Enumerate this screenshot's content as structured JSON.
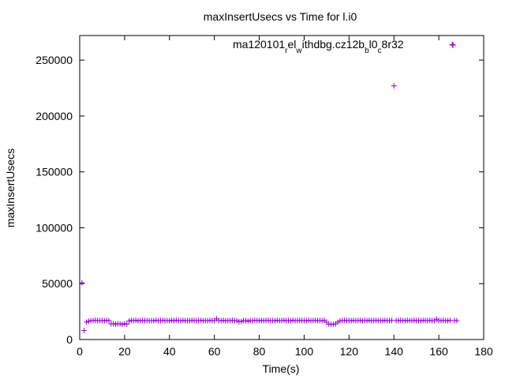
{
  "chart_data": {
    "type": "scatter",
    "title": "maxInsertUsecs vs Time for l.i0",
    "xlabel": "Time(s)",
    "ylabel": "maxInsertUsecs",
    "xlim": [
      0,
      180
    ],
    "ylim": [
      0,
      272000
    ],
    "x_ticks": [
      0,
      20,
      40,
      60,
      80,
      100,
      120,
      140,
      160,
      180
    ],
    "y_ticks": [
      0,
      50000,
      100000,
      150000,
      200000,
      250000
    ],
    "grid": false,
    "legend_position": "top-right",
    "series": [
      {
        "name": "ma120101_rel_withdbg.cz12b_bl0_c8r32",
        "color": "#9400d3",
        "marker": "plus",
        "points": [
          [
            1,
            50800
          ],
          [
            2,
            8000
          ],
          [
            3,
            15500
          ],
          [
            4,
            16300
          ],
          [
            5,
            16900
          ],
          [
            6,
            17000
          ],
          [
            7,
            17200
          ],
          [
            8,
            17000
          ],
          [
            9,
            16900
          ],
          [
            10,
            17000
          ],
          [
            11,
            16800
          ],
          [
            12,
            17100
          ],
          [
            13,
            16900
          ],
          [
            14,
            14000
          ],
          [
            15,
            14200
          ],
          [
            16,
            13800
          ],
          [
            17,
            14100
          ],
          [
            18,
            14000
          ],
          [
            19,
            13500
          ],
          [
            20,
            14200
          ],
          [
            21,
            13800
          ],
          [
            22,
            16500
          ],
          [
            23,
            17100
          ],
          [
            24,
            17000
          ],
          [
            25,
            17200
          ],
          [
            26,
            16800
          ],
          [
            27,
            17000
          ],
          [
            28,
            17100
          ],
          [
            29,
            16900
          ],
          [
            30,
            17000
          ],
          [
            31,
            16900
          ],
          [
            32,
            17000
          ],
          [
            33,
            16800
          ],
          [
            34,
            17100
          ],
          [
            35,
            16900
          ],
          [
            36,
            17000
          ],
          [
            37,
            17100
          ],
          [
            38,
            16900
          ],
          [
            39,
            17000
          ],
          [
            40,
            16800
          ],
          [
            41,
            17100
          ],
          [
            42,
            16900
          ],
          [
            43,
            17200
          ],
          [
            44,
            17000
          ],
          [
            45,
            16900
          ],
          [
            46,
            17100
          ],
          [
            47,
            16800
          ],
          [
            48,
            17000
          ],
          [
            49,
            16900
          ],
          [
            50,
            17100
          ],
          [
            51,
            17000
          ],
          [
            52,
            16900
          ],
          [
            53,
            17000
          ],
          [
            54,
            17100
          ],
          [
            55,
            16800
          ],
          [
            56,
            17000
          ],
          [
            57,
            16900
          ],
          [
            58,
            17100
          ],
          [
            59,
            17000
          ],
          [
            60,
            16900
          ],
          [
            61,
            18500
          ],
          [
            62,
            17000
          ],
          [
            63,
            16900
          ],
          [
            64,
            17100
          ],
          [
            65,
            16800
          ],
          [
            66,
            17000
          ],
          [
            67,
            16900
          ],
          [
            68,
            17100
          ],
          [
            69,
            17000
          ],
          [
            70,
            16900
          ],
          [
            71,
            16000
          ],
          [
            72,
            16200
          ],
          [
            73,
            17000
          ],
          [
            74,
            16900
          ],
          [
            75,
            16300
          ],
          [
            76,
            17000
          ],
          [
            77,
            16900
          ],
          [
            78,
            17100
          ],
          [
            79,
            17000
          ],
          [
            80,
            16800
          ],
          [
            81,
            17100
          ],
          [
            82,
            16900
          ],
          [
            83,
            17000
          ],
          [
            84,
            17100
          ],
          [
            85,
            16900
          ],
          [
            86,
            17000
          ],
          [
            87,
            16800
          ],
          [
            88,
            17100
          ],
          [
            89,
            16900
          ],
          [
            90,
            17000
          ],
          [
            91,
            17100
          ],
          [
            92,
            16900
          ],
          [
            93,
            17000
          ],
          [
            94,
            16800
          ],
          [
            95,
            17100
          ],
          [
            96,
            16900
          ],
          [
            97,
            17000
          ],
          [
            98,
            17100
          ],
          [
            99,
            16900
          ],
          [
            100,
            17000
          ],
          [
            101,
            16800
          ],
          [
            102,
            17100
          ],
          [
            103,
            16900
          ],
          [
            104,
            17000
          ],
          [
            105,
            17100
          ],
          [
            106,
            16900
          ],
          [
            107,
            17000
          ],
          [
            108,
            16800
          ],
          [
            109,
            17100
          ],
          [
            110,
            15500
          ],
          [
            111,
            13800
          ],
          [
            112,
            13500
          ],
          [
            113,
            13700
          ],
          [
            114,
            14000
          ],
          [
            115,
            15500
          ],
          [
            116,
            16800
          ],
          [
            117,
            17000
          ],
          [
            118,
            17100
          ],
          [
            119,
            16900
          ],
          [
            120,
            17000
          ],
          [
            121,
            16800
          ],
          [
            122,
            17100
          ],
          [
            123,
            16900
          ],
          [
            124,
            17000
          ],
          [
            125,
            17100
          ],
          [
            126,
            16900
          ],
          [
            127,
            17000
          ],
          [
            128,
            16800
          ],
          [
            129,
            17100
          ],
          [
            130,
            16900
          ],
          [
            131,
            17000
          ],
          [
            132,
            17100
          ],
          [
            133,
            16900
          ],
          [
            134,
            17000
          ],
          [
            135,
            16800
          ],
          [
            136,
            17100
          ],
          [
            137,
            16900
          ],
          [
            138,
            17000
          ],
          [
            139,
            17100
          ],
          [
            140,
            227000
          ],
          [
            141,
            17000
          ],
          [
            142,
            16900
          ],
          [
            143,
            17100
          ],
          [
            144,
            17000
          ],
          [
            145,
            16800
          ],
          [
            146,
            17100
          ],
          [
            147,
            16900
          ],
          [
            148,
            17000
          ],
          [
            149,
            17100
          ],
          [
            150,
            16900
          ],
          [
            151,
            17000
          ],
          [
            152,
            16800
          ],
          [
            153,
            17100
          ],
          [
            154,
            16900
          ],
          [
            155,
            17000
          ],
          [
            156,
            17100
          ],
          [
            157,
            16900
          ],
          [
            158,
            17000
          ],
          [
            159,
            18200
          ],
          [
            160,
            17000
          ],
          [
            161,
            16900
          ],
          [
            162,
            17100
          ],
          [
            163,
            17000
          ],
          [
            164,
            16800
          ],
          [
            165,
            17100
          ],
          [
            166,
            264000
          ],
          [
            167,
            17000
          ],
          [
            168,
            16900
          ]
        ]
      }
    ]
  }
}
